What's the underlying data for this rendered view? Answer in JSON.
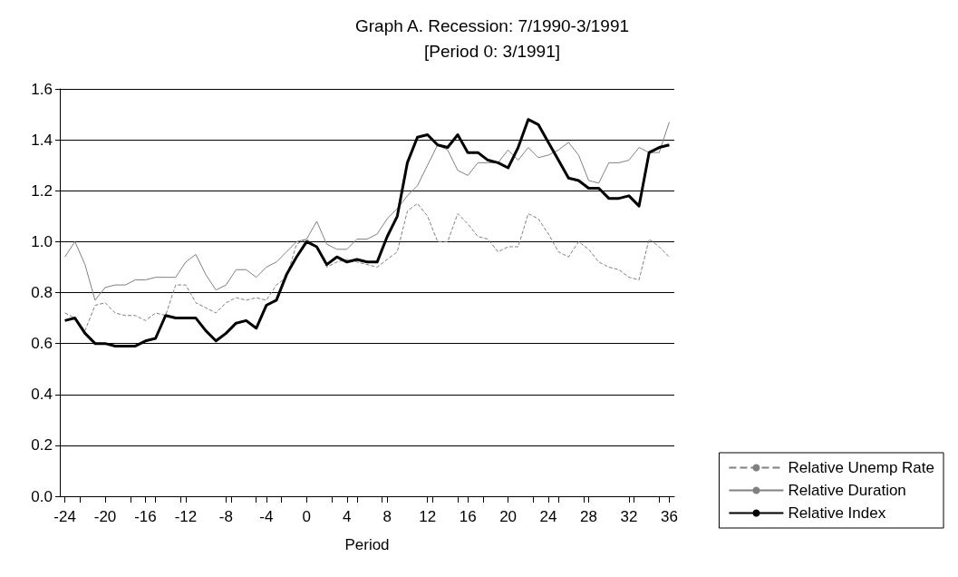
{
  "chart_data": {
    "type": "line",
    "title": "Graph A. Recession: 7/1990-3/1991",
    "subtitle": "[Period 0: 3/1991]",
    "xlabel": "Period",
    "x": [
      -24,
      -23,
      -22,
      -21,
      -20,
      -19,
      -18,
      -17,
      -16,
      -15,
      -14,
      -13,
      -12,
      -11,
      -10,
      -9,
      -8,
      -7,
      -6,
      -5,
      -4,
      -3,
      -2,
      -1,
      0,
      1,
      2,
      3,
      4,
      5,
      6,
      7,
      8,
      9,
      10,
      11,
      12,
      13,
      14,
      15,
      16,
      17,
      18,
      19,
      20,
      21,
      22,
      23,
      24,
      25,
      26,
      27,
      28,
      29,
      30,
      31,
      32,
      33,
      34,
      35,
      36
    ],
    "xlim": [
      -24.5,
      36.5
    ],
    "xticks": [
      -24,
      -20,
      -16,
      -12,
      -8,
      -4,
      0,
      4,
      8,
      12,
      16,
      20,
      24,
      28,
      32,
      36
    ],
    "ylim": [
      0,
      1.6
    ],
    "yticks": [
      {
        "value": 0,
        "label": "0.0"
      },
      {
        "value": 0.2,
        "label": "0.2"
      },
      {
        "value": 0.4,
        "label": "0.4"
      },
      {
        "value": 0.6,
        "label": "0.6"
      },
      {
        "value": 0.8,
        "label": "0.8"
      },
      {
        "value": 1,
        "label": "1.0"
      },
      {
        "value": 1.2,
        "label": "1.2"
      },
      {
        "value": 1.4,
        "label": "1.4"
      },
      {
        "value": 1.6,
        "label": "1.6"
      }
    ],
    "grid": "y",
    "legend": "bottom right",
    "marker": "none",
    "series": [
      {
        "name": "Relative Unemp Rate",
        "color": "#808080",
        "line_style": "dashed",
        "values": [
          0.72,
          0.7,
          0.65,
          0.75,
          0.76,
          0.72,
          0.71,
          0.71,
          0.69,
          0.72,
          0.71,
          0.83,
          0.83,
          0.76,
          0.74,
          0.72,
          0.76,
          0.78,
          0.77,
          0.78,
          0.77,
          0.83,
          0.86,
          0.99,
          1.01,
          0.98,
          0.9,
          0.92,
          0.93,
          0.92,
          0.91,
          0.9,
          0.93,
          0.96,
          1.12,
          1.15,
          1.1,
          1.0,
          1.0,
          1.11,
          1.07,
          1.02,
          1.01,
          0.96,
          0.98,
          0.98,
          1.11,
          1.09,
          1.03,
          0.96,
          0.94,
          1.0,
          0.97,
          0.92,
          0.9,
          0.89,
          0.86,
          0.85,
          1.01,
          0.98,
          0.94
        ]
      },
      {
        "name": "Relative Duration",
        "color": "#808080",
        "line_style": "solid",
        "values": [
          0.94,
          1.0,
          0.91,
          0.77,
          0.82,
          0.83,
          0.83,
          0.85,
          0.85,
          0.86,
          0.86,
          0.86,
          0.92,
          0.95,
          0.87,
          0.81,
          0.83,
          0.89,
          0.89,
          0.86,
          0.9,
          0.92,
          0.96,
          1.0,
          1.01,
          1.08,
          0.99,
          0.97,
          0.97,
          1.01,
          1.01,
          1.03,
          1.09,
          1.13,
          1.18,
          1.22,
          1.3,
          1.38,
          1.36,
          1.28,
          1.26,
          1.31,
          1.31,
          1.31,
          1.36,
          1.32,
          1.37,
          1.33,
          1.34,
          1.36,
          1.39,
          1.34,
          1.24,
          1.23,
          1.31,
          1.31,
          1.32,
          1.37,
          1.35,
          1.35,
          1.47
        ]
      },
      {
        "name": "Relative Index",
        "color": "#000000",
        "line_style": "solid",
        "values": [
          0.69,
          0.7,
          0.64,
          0.6,
          0.6,
          0.59,
          0.59,
          0.59,
          0.61,
          0.62,
          0.71,
          0.7,
          0.7,
          0.7,
          0.65,
          0.61,
          0.64,
          0.68,
          0.69,
          0.66,
          0.75,
          0.77,
          0.87,
          0.94,
          1.0,
          0.98,
          0.91,
          0.94,
          0.92,
          0.93,
          0.92,
          0.92,
          1.02,
          1.1,
          1.31,
          1.41,
          1.42,
          1.38,
          1.37,
          1.42,
          1.35,
          1.35,
          1.32,
          1.31,
          1.29,
          1.37,
          1.48,
          1.46,
          1.39,
          1.32,
          1.25,
          1.24,
          1.21,
          1.21,
          1.17,
          1.17,
          1.18,
          1.14,
          1.35,
          1.37,
          1.38
        ]
      }
    ]
  }
}
